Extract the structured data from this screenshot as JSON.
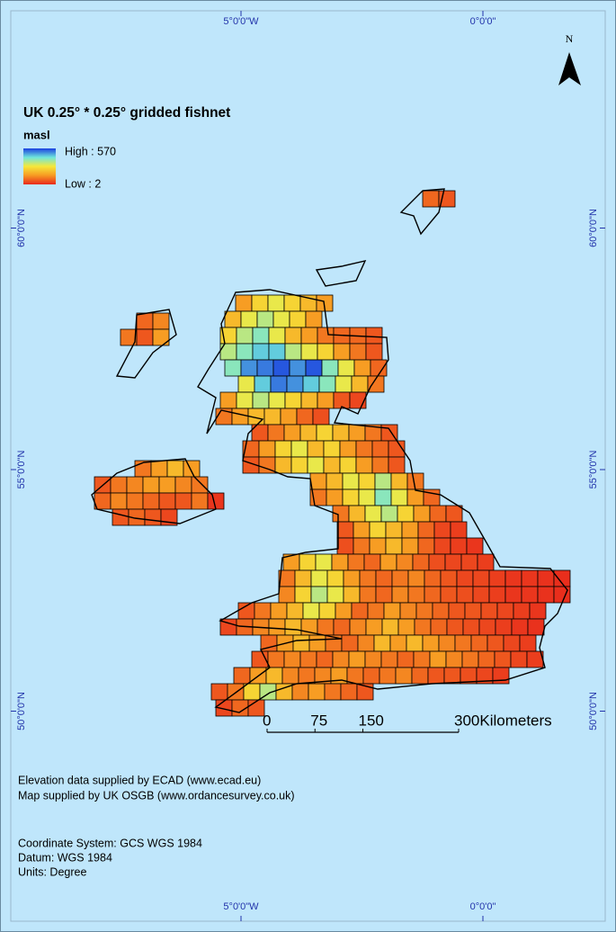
{
  "title": "UK 0.25° * 0.25° gridded fishnet",
  "north_label": "N",
  "legend": {
    "title": "masl",
    "high": {
      "value": 570,
      "label": "High : 570"
    },
    "low": {
      "value": 2,
      "label": "Low : 2"
    },
    "colors": [
      "#e8281c",
      "#f79a22",
      "#f6e83a",
      "#6fe6dc",
      "#1a3fe0"
    ]
  },
  "longitude_ticks": [
    {
      "value": -5,
      "label": "5°0'0\"W"
    },
    {
      "value": 0,
      "label": "0°0'0\""
    }
  ],
  "latitude_ticks": [
    {
      "value": 60,
      "label": "60°0'0\"N"
    },
    {
      "value": 55,
      "label": "55°0'0\"N"
    },
    {
      "value": 50,
      "label": "50°0'0\"N"
    }
  ],
  "scale_bar": {
    "ticks": [
      0,
      75,
      150,
      {
        "value": 300,
        "label": "300Kilometers"
      }
    ]
  },
  "credits": [
    "Elevation data supplied by ECAD (www.ecad.eu)",
    "Map supplied by UK OSGB (www.ordancesurvey.co.uk)"
  ],
  "coordinate_info": [
    "Coordinate System: GCS WGS 1984",
    "Datum: WGS 1984",
    "Units: Degree"
  ],
  "fishnet": {
    "rows": [
      [
        80,
        60
      ],
      [
        80,
        120
      ],
      [
        100,
        60,
        150
      ],
      [
        150,
        250,
        300,
        250,
        200,
        150
      ],
      [
        200,
        300,
        350,
        300,
        250,
        150
      ],
      [
        250,
        350,
        400,
        300,
        200,
        150,
        100,
        80,
        80,
        60
      ],
      [
        350,
        400,
        450,
        450,
        350,
        300,
        250,
        150,
        100,
        60
      ],
      [
        400,
        500,
        520,
        550,
        500,
        550,
        400,
        300,
        150,
        80
      ],
      [
        300,
        450,
        520,
        500,
        450,
        400,
        300,
        200,
        100
      ],
      [
        150,
        300,
        350,
        300,
        250,
        200,
        150,
        60,
        40
      ],
      [
        100,
        150,
        200,
        200,
        150,
        80,
        50
      ],
      [
        60,
        100,
        150,
        200,
        250,
        200,
        150,
        100,
        60
      ],
      [
        80,
        150,
        250,
        300,
        200,
        250,
        150,
        100,
        80,
        60
      ],
      [
        60,
        100,
        200,
        250,
        300,
        200,
        250,
        150,
        100,
        60
      ],
      [
        150,
        200,
        300,
        250,
        350,
        200,
        100
      ],
      [
        100,
        150,
        250,
        300,
        400,
        300,
        150,
        80
      ],
      [
        100,
        200,
        300,
        350,
        250,
        150,
        80,
        60
      ],
      [
        60,
        150,
        250,
        200,
        150,
        80,
        40,
        30
      ],
      [
        50,
        100,
        150,
        200,
        150,
        80,
        40,
        30,
        20
      ],
      [
        150,
        250,
        300,
        150,
        100,
        80,
        150,
        120,
        80,
        50,
        40,
        40,
        30
      ],
      [
        100,
        200,
        300,
        250,
        150,
        100,
        80,
        100,
        120,
        80,
        60,
        40,
        40,
        30,
        20,
        20,
        15,
        10
      ],
      [
        120,
        250,
        350,
        300,
        200,
        100,
        80,
        120,
        100,
        80,
        60,
        50,
        40,
        30,
        20,
        20,
        15,
        10
      ],
      [
        60,
        100,
        150,
        200,
        300,
        250,
        150,
        80,
        100,
        150,
        120,
        100,
        80,
        60,
        60,
        50,
        40,
        30,
        20
      ],
      [
        40,
        80,
        120,
        150,
        200,
        150,
        100,
        80,
        120,
        150,
        200,
        150,
        100,
        80,
        60,
        50,
        40,
        30,
        20,
        15
      ],
      [
        80,
        150,
        200,
        150,
        100,
        80,
        120,
        200,
        150,
        200,
        150,
        120,
        100,
        80,
        60,
        40,
        30
      ],
      [
        60,
        100,
        120,
        100,
        80,
        120,
        150,
        120,
        100,
        80,
        100,
        150,
        120,
        100,
        80,
        60,
        40,
        30
      ],
      [
        80,
        150,
        200,
        120,
        100,
        120,
        150,
        100,
        80,
        100,
        120,
        80,
        60,
        60,
        50,
        40,
        30
      ],
      [
        60,
        100,
        250,
        350,
        200,
        120,
        150,
        100,
        80,
        60
      ],
      [
        40,
        80,
        60
      ],
      [
        100,
        150,
        200,
        150
      ],
      [
        60,
        100,
        120,
        150,
        150,
        120,
        100
      ],
      [
        80,
        120,
        100,
        80,
        60,
        60,
        100,
        20
      ],
      [
        60,
        80,
        60,
        40
      ]
    ]
  }
}
